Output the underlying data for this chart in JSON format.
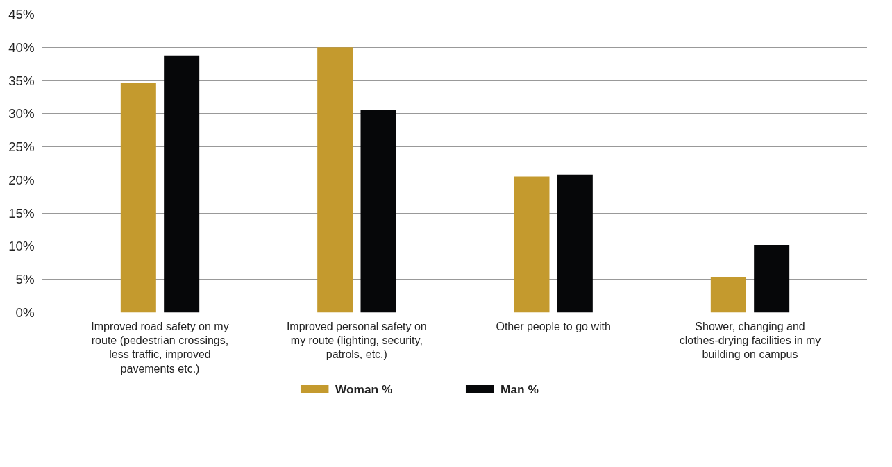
{
  "chart_data": {
    "type": "bar",
    "categories": [
      "Improved road safety on my\nroute (pedestrian crossings,\nless traffic, improved\npavements etc.)",
      "Improved personal safety on\nmy route (lighting, security,\npatrols, etc.)",
      "Other people to go with",
      "Shower, changing and\nclothes-drying facilities in my\nbuilding on campus"
    ],
    "series": [
      {
        "name": "Woman %",
        "color": "#c49a2e",
        "values": [
          34.6,
          40.0,
          20.5,
          5.4
        ]
      },
      {
        "name": "Man %",
        "color": "#060709",
        "values": [
          38.8,
          30.5,
          20.8,
          10.2
        ]
      }
    ],
    "ylim": [
      0,
      45
    ],
    "yticks": [
      {
        "value": 0,
        "label": "0%"
      },
      {
        "value": 5,
        "label": "5%"
      },
      {
        "value": 10,
        "label": "10%"
      },
      {
        "value": 15,
        "label": "15%"
      },
      {
        "value": 20,
        "label": "20%"
      },
      {
        "value": 25,
        "label": "25%"
      },
      {
        "value": 30,
        "label": "30%"
      },
      {
        "value": 35,
        "label": "35%"
      },
      {
        "value": 40,
        "label": "40%"
      },
      {
        "value": 45,
        "label": "45%"
      }
    ],
    "grid": "y",
    "legend": "bottom"
  }
}
